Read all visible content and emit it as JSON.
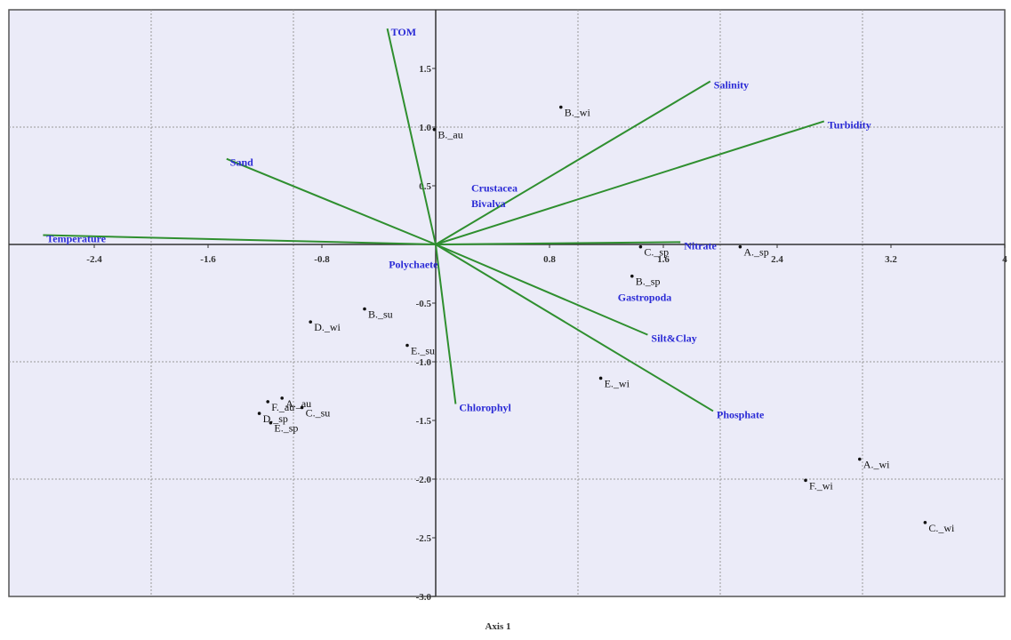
{
  "chart_data": {
    "type": "biplot",
    "xlabel": "Axis 1",
    "xlim": [
      -3,
      4
    ],
    "ylim": [
      -3,
      2
    ],
    "xticks": [
      -2.4,
      -1.6,
      -0.8,
      0.8,
      1.6,
      2.4,
      3.2,
      4
    ],
    "yticks": [
      {
        "value": -3,
        "label": "-3.0"
      },
      -2.5,
      {
        "value": -2,
        "label": "-2.0"
      },
      -1.5,
      {
        "value": -1,
        "label": "-1.0"
      },
      -0.5,
      0.5,
      {
        "value": 1,
        "label": "1.0"
      },
      1.5
    ],
    "xgrid": [
      -2,
      -1,
      1,
      2,
      3
    ],
    "ygrid": [
      -2,
      -1,
      1
    ],
    "grid": true,
    "vectors": {
      "color": "#2f8f2f",
      "labels": [
        "TOM",
        "Salinity",
        "Turbidity",
        "Sand",
        "Temperature",
        "Nitrate",
        "Silt&Clay",
        "Phosphate",
        "Chlorophyl"
      ],
      "x": [
        -0.34,
        1.93,
        2.73,
        -1.47,
        -2.76,
        1.72,
        1.49,
        1.95,
        0.14
      ],
      "y": [
        1.84,
        1.39,
        1.05,
        0.73,
        0.08,
        0.02,
        -0.77,
        -1.42,
        -1.36
      ]
    },
    "species": {
      "color": "#2b2bd6",
      "labels": [
        "Crustacea",
        "Bivalva",
        "Gastropoda",
        "Polychaete"
      ],
      "x": [
        0.25,
        0.25,
        1.28,
        -0.33
      ],
      "y": [
        0.45,
        0.32,
        -0.48,
        -0.2
      ]
    },
    "samples": {
      "color": "#111111",
      "labels": [
        "B._wi",
        "B._au",
        "C._sp",
        "A._sp",
        "B._sp",
        "B._su",
        "D._wi",
        "E._su",
        "E._wi",
        "A._wi",
        "F._wi",
        "C._wi",
        "F._au",
        "A._au",
        "C._su",
        "D._sp",
        "E._sp"
      ],
      "x": [
        0.88,
        -0.01,
        1.44,
        2.14,
        1.38,
        -0.5,
        -0.88,
        -0.2,
        1.16,
        2.98,
        2.6,
        3.44,
        -1.18,
        -1.08,
        -0.94,
        -1.24,
        -1.16
      ],
      "y": [
        1.17,
        0.98,
        -0.02,
        -0.02,
        -0.27,
        -0.55,
        -0.66,
        -0.86,
        -1.14,
        -1.83,
        -2.01,
        -2.37,
        -1.34,
        -1.31,
        -1.39,
        -1.44,
        -1.52
      ]
    }
  }
}
